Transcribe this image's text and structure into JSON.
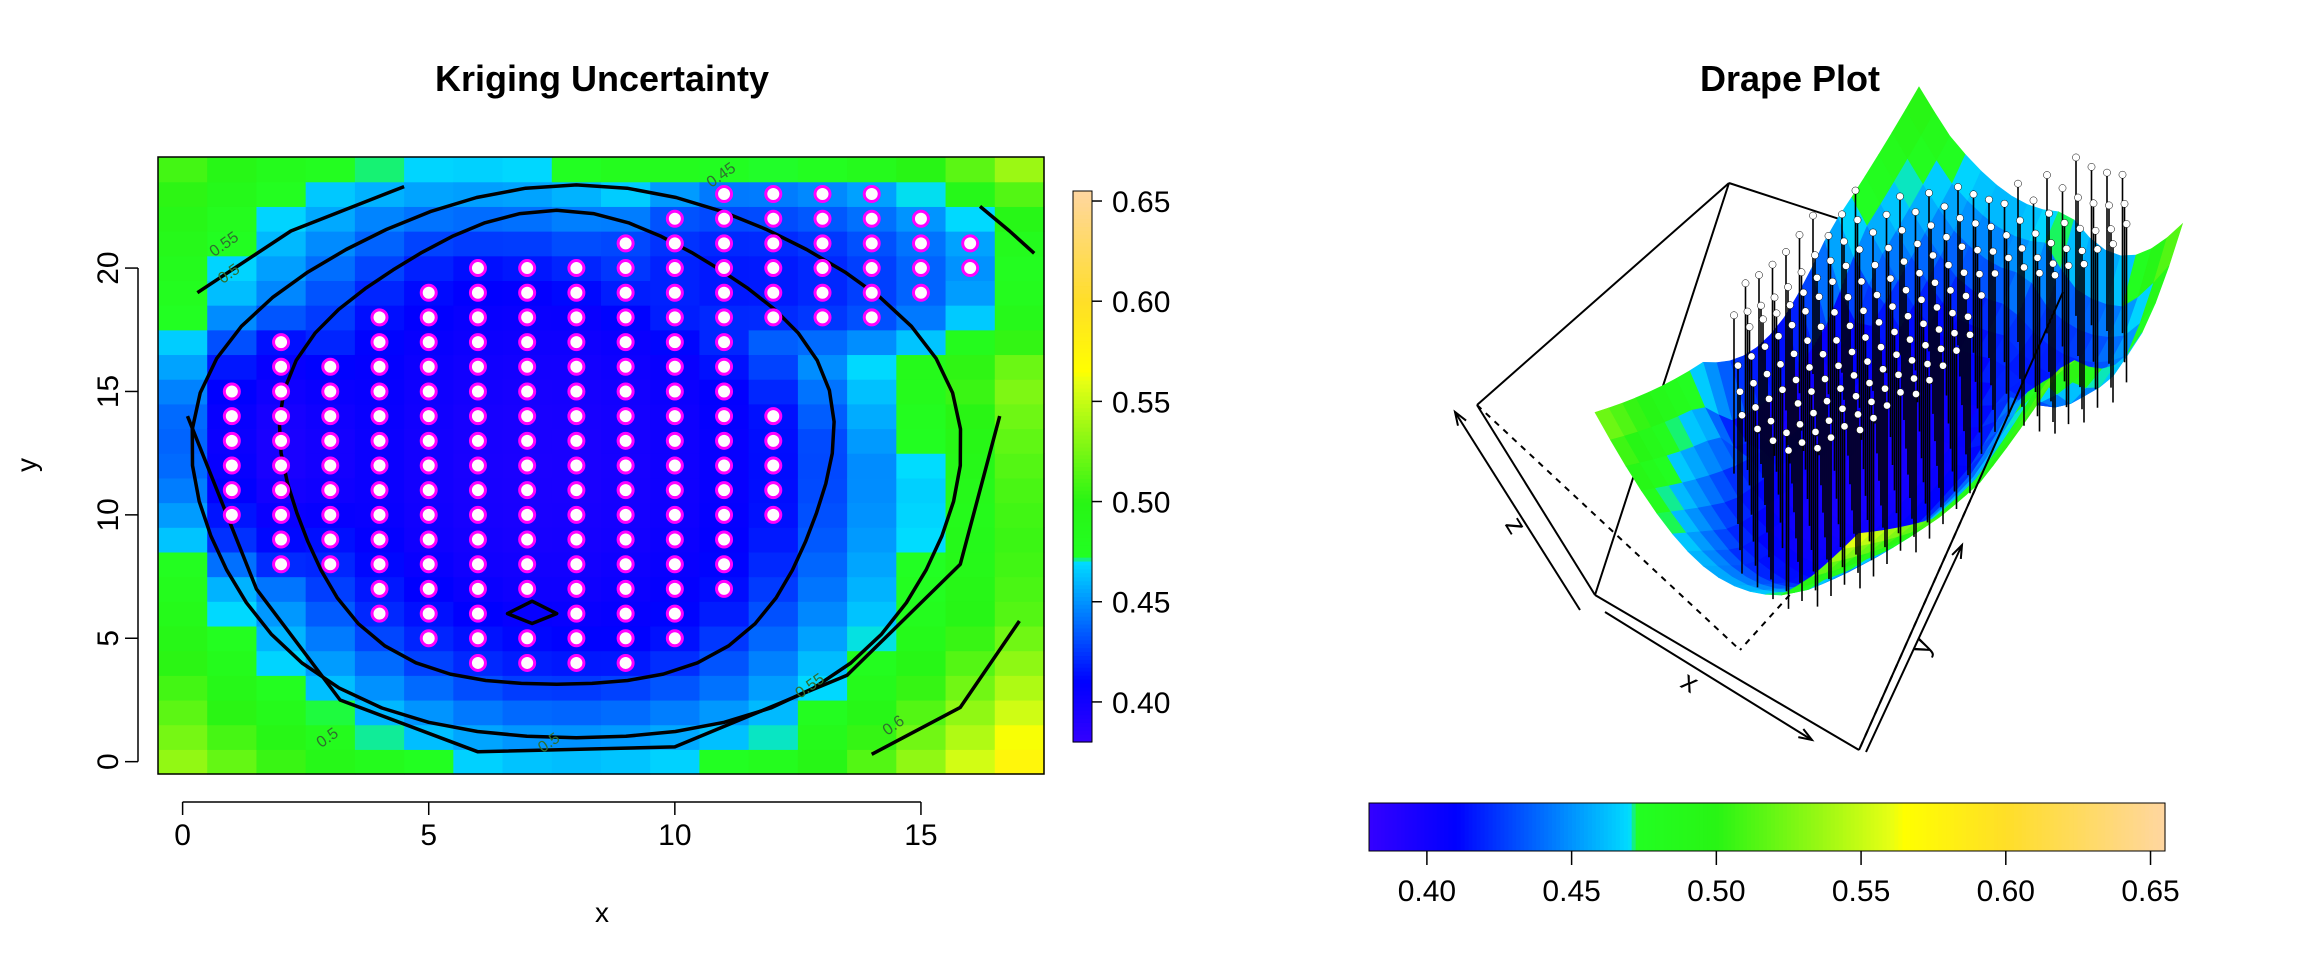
{
  "chart_data": [
    {
      "type": "heatmap",
      "title": "Kriging Uncertainty",
      "xlabel": "x",
      "ylabel": "y",
      "xlim": [
        -0.5,
        17.5
      ],
      "ylim": [
        -0.5,
        24.5
      ],
      "x_ticks": [
        "0",
        "5",
        "10",
        "15"
      ],
      "y_ticks": [
        "0",
        "5",
        "10",
        "15",
        "20"
      ],
      "grid": false,
      "legend": "colorbar right",
      "value_range": [
        0.38,
        0.655
      ],
      "colorbar_ticks": [
        "0.40",
        "0.45",
        "0.50",
        "0.55",
        "0.60",
        "0.65"
      ],
      "contour_levels": [
        "0.45",
        "0.5",
        "0.55",
        "0.6"
      ],
      "sample_points": "points at the observation locations in the low-uncertainty region",
      "colors": {
        "low": "#2a10ff",
        "mid": "#22ff22",
        "high": "#ffd79b",
        "point": "#ff00ff"
      }
    },
    {
      "type": "surface",
      "title": "Drape Plot",
      "axis_labels": {
        "x": "x",
        "y": "y",
        "z": "z"
      },
      "legend": "colorbar bottom",
      "colorbar_ticks": [
        "0.40",
        "0.45",
        "0.50",
        "0.55",
        "0.60",
        "0.65"
      ]
    }
  ]
}
